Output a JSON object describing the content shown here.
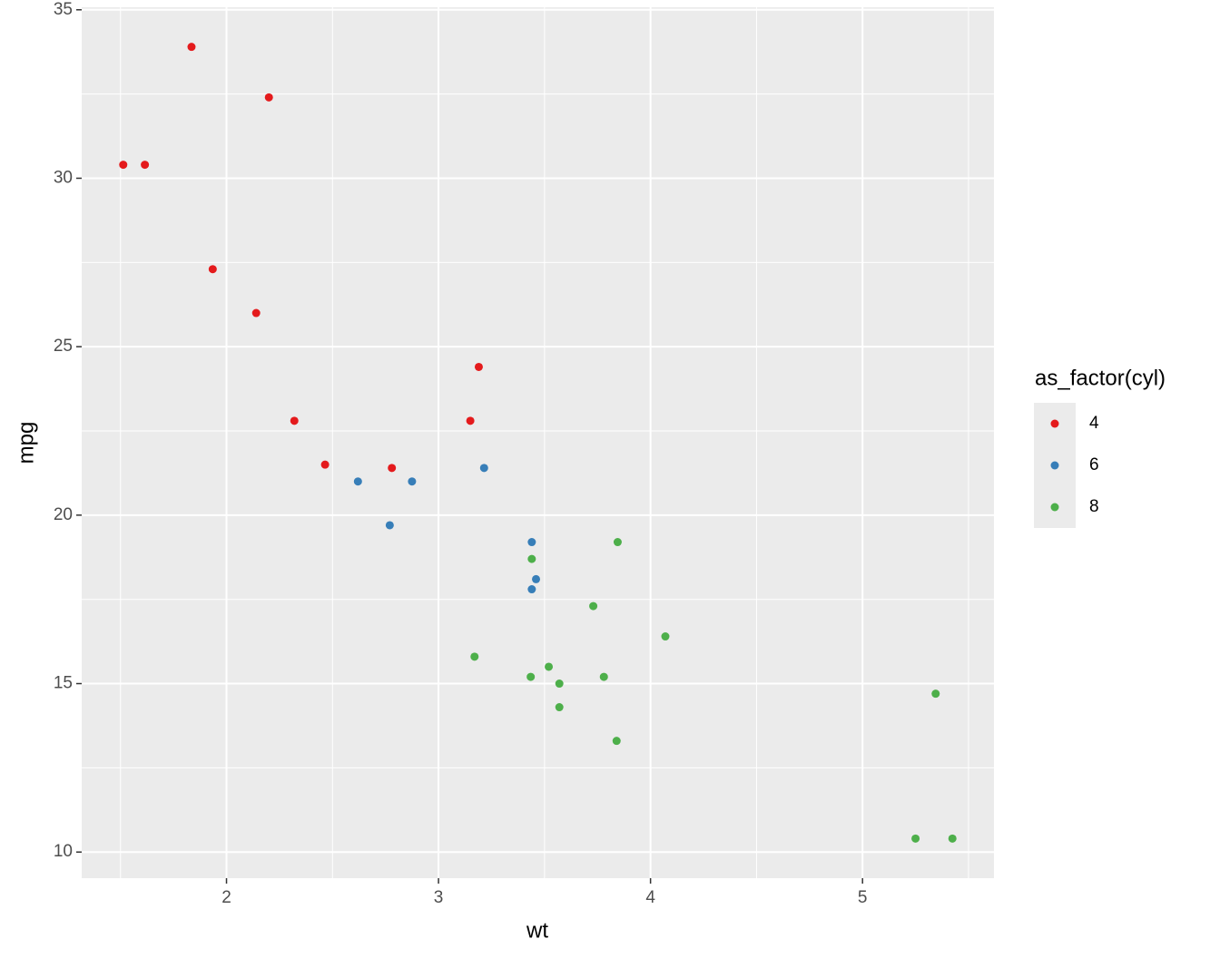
{
  "chart_data": {
    "type": "scatter",
    "x_label": "wt",
    "y_label": "mpg",
    "legend_title": "as_factor(cyl)",
    "legend": "right",
    "xlim": [
      1.317,
      5.62
    ],
    "ylim": [
      9.225,
      35.075
    ],
    "xticks": [
      2,
      3,
      4,
      5
    ],
    "yticks": [
      10,
      15,
      20,
      25,
      30,
      35
    ],
    "xminor": [
      1.5,
      2.5,
      3.5,
      4.5,
      5.5
    ],
    "yminor": [
      12.5,
      17.5,
      22.5,
      27.5,
      32.5
    ],
    "grid": true,
    "series": [
      {
        "name": "4",
        "color": "#e41a1c",
        "x": [
          2.32,
          3.19,
          3.15,
          2.2,
          1.615,
          1.835,
          2.465,
          1.935,
          2.14,
          1.513,
          2.78
        ],
        "values": [
          22.8,
          24.4,
          22.8,
          32.4,
          30.4,
          33.9,
          21.5,
          27.3,
          26.0,
          30.4,
          21.4
        ]
      },
      {
        "name": "6",
        "color": "#377eb8",
        "x": [
          2.62,
          2.875,
          3.215,
          3.46,
          3.44,
          3.44,
          2.77
        ],
        "values": [
          21.0,
          21.0,
          21.4,
          18.1,
          19.2,
          17.8,
          19.7
        ]
      },
      {
        "name": "8",
        "color": "#4daf4a",
        "x": [
          3.44,
          3.57,
          4.07,
          3.73,
          3.78,
          5.25,
          5.424,
          5.345,
          3.52,
          3.435,
          3.84,
          3.845,
          3.17,
          3.57
        ],
        "values": [
          18.7,
          14.3,
          16.4,
          17.3,
          15.2,
          10.4,
          10.4,
          14.7,
          15.5,
          15.2,
          13.3,
          19.2,
          15.8,
          15.0
        ]
      }
    ]
  }
}
